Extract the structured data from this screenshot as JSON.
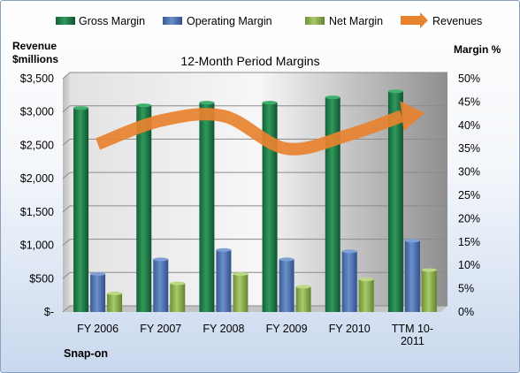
{
  "chart_data": {
    "type": "bar",
    "title": "12-Month Period Margins",
    "left_axis_label_line1": "Revenue",
    "left_axis_label_line2": "$millions",
    "right_axis_label": "Margin %",
    "footer_label": "Snap-on",
    "categories": [
      [
        "FY 2006"
      ],
      [
        "FY 2007"
      ],
      [
        "FY 2008"
      ],
      [
        "FY 2009"
      ],
      [
        "FY 2010"
      ],
      [
        "TTM 10-",
        "2011"
      ]
    ],
    "left_ticks": [
      "$-",
      "$500",
      "$1,000",
      "$1,500",
      "$2,000",
      "$2,500",
      "$3,000",
      "$3,500"
    ],
    "right_ticks": [
      "0%",
      "5%",
      "10%",
      "15%",
      "20%",
      "25%",
      "30%",
      "35%",
      "40%",
      "45%",
      "50%"
    ],
    "left_ylim": [
      0,
      3500
    ],
    "right_ylim": [
      0,
      50
    ],
    "grid": true,
    "legend_position": "top",
    "series": [
      {
        "name": "Gross Margin",
        "kind": "bar",
        "axis": "left",
        "color": "#1e7d45",
        "values": [
          3060,
          3100,
          3140,
          3140,
          3220,
          3310
        ]
      },
      {
        "name": "Operating Margin",
        "kind": "bar",
        "axis": "left",
        "color": "#4a6fae",
        "values": [
          570,
          790,
          930,
          790,
          910,
          1070
        ]
      },
      {
        "name": "Net Margin",
        "kind": "bar",
        "axis": "left",
        "color": "#8db04f",
        "values": [
          280,
          430,
          570,
          380,
          490,
          630
        ]
      },
      {
        "name": "Revenues",
        "kind": "line-arrow",
        "axis": "right",
        "color": "#e8822f",
        "values": [
          36,
          41,
          42,
          35,
          38,
          42
        ]
      }
    ]
  }
}
